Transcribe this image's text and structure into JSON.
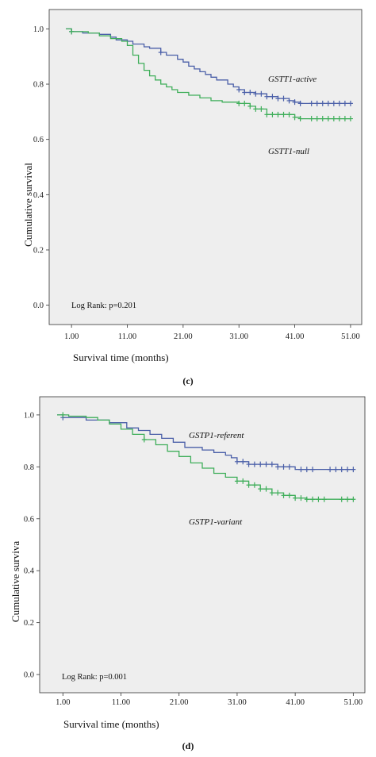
{
  "chart_data": [
    {
      "panel_label": "(c)",
      "type": "line",
      "xlabel": "Survival time (months)",
      "ylabel": "Cumulative survival",
      "xticks": [
        "1.00",
        "11.00",
        "21.00",
        "31.00",
        "41.00",
        "51.00"
      ],
      "yticks": [
        "0.0",
        "0.2",
        "0.4",
        "0.6",
        "0.8",
        "1.0"
      ],
      "xlim": [
        -3,
        53
      ],
      "ylim": [
        -0.07,
        1.07
      ],
      "grid": false,
      "annotation": "Log Rank: p=0.201",
      "series": [
        {
          "name": "GSTT1-active",
          "color": "#4a5fa8",
          "steps": [
            [
              0,
              1.0
            ],
            [
              1,
              0.99
            ],
            [
              3,
              0.985
            ],
            [
              6,
              0.98
            ],
            [
              8,
              0.97
            ],
            [
              9,
              0.96
            ],
            [
              11,
              0.955
            ],
            [
              12,
              0.945
            ],
            [
              14,
              0.935
            ],
            [
              15,
              0.93
            ],
            [
              17,
              0.915
            ],
            [
              18,
              0.905
            ],
            [
              20,
              0.89
            ],
            [
              21,
              0.88
            ],
            [
              22,
              0.865
            ],
            [
              23,
              0.855
            ],
            [
              24,
              0.845
            ],
            [
              25,
              0.835
            ],
            [
              26,
              0.825
            ],
            [
              27,
              0.815
            ],
            [
              29,
              0.8
            ],
            [
              30,
              0.79
            ],
            [
              31,
              0.78
            ],
            [
              32,
              0.77
            ],
            [
              34,
              0.765
            ],
            [
              36,
              0.755
            ],
            [
              38,
              0.748
            ],
            [
              40,
              0.74
            ],
            [
              41,
              0.735
            ],
            [
              42,
              0.73
            ],
            [
              51,
              0.73
            ]
          ],
          "censored": [
            1,
            17,
            31,
            32,
            33,
            34,
            35,
            36,
            37,
            38,
            39,
            40,
            41,
            42,
            44,
            45,
            46,
            47,
            48,
            49,
            50,
            51
          ]
        },
        {
          "name": "GSTT1-null",
          "color": "#3fae5a",
          "steps": [
            [
              0,
              1.0
            ],
            [
              1,
              0.99
            ],
            [
              4,
              0.985
            ],
            [
              6,
              0.975
            ],
            [
              8,
              0.965
            ],
            [
              10,
              0.955
            ],
            [
              11,
              0.94
            ],
            [
              12,
              0.905
            ],
            [
              13,
              0.875
            ],
            [
              14,
              0.85
            ],
            [
              15,
              0.83
            ],
            [
              16,
              0.815
            ],
            [
              17,
              0.8
            ],
            [
              18,
              0.79
            ],
            [
              19,
              0.78
            ],
            [
              20,
              0.77
            ],
            [
              22,
              0.76
            ],
            [
              24,
              0.75
            ],
            [
              26,
              0.74
            ],
            [
              28,
              0.735
            ],
            [
              31,
              0.73
            ],
            [
              33,
              0.72
            ],
            [
              34,
              0.71
            ],
            [
              36,
              0.69
            ],
            [
              41,
              0.68
            ],
            [
              42,
              0.675
            ],
            [
              51,
              0.675
            ]
          ],
          "censored": [
            1,
            31,
            32,
            33,
            34,
            35,
            36,
            37,
            38,
            39,
            40,
            41,
            42,
            44,
            45,
            46,
            47,
            48,
            49,
            50,
            51
          ]
        }
      ]
    },
    {
      "panel_label": "(d)",
      "type": "line",
      "xlabel": "Survival time (months)",
      "ylabel": "Cumulative surviva",
      "xticks": [
        "1.00",
        "11.00",
        "21.00",
        "31.00",
        "41.00",
        "51.00"
      ],
      "yticks": [
        "0.0",
        "0.2",
        "0.4",
        "0.6",
        "0.8",
        "1.0"
      ],
      "xlim": [
        -3,
        53
      ],
      "ylim": [
        -0.07,
        1.07
      ],
      "grid": false,
      "annotation": "Log Rank: p=0.001",
      "series": [
        {
          "name": "GSTP1-referent",
          "color": "#4a5fa8",
          "steps": [
            [
              0,
              1.0
            ],
            [
              1,
              0.99
            ],
            [
              5,
              0.98
            ],
            [
              9,
              0.97
            ],
            [
              12,
              0.95
            ],
            [
              14,
              0.94
            ],
            [
              16,
              0.925
            ],
            [
              18,
              0.91
            ],
            [
              20,
              0.895
            ],
            [
              22,
              0.875
            ],
            [
              25,
              0.865
            ],
            [
              27,
              0.855
            ],
            [
              29,
              0.845
            ],
            [
              30,
              0.835
            ],
            [
              31,
              0.82
            ],
            [
              33,
              0.81
            ],
            [
              38,
              0.8
            ],
            [
              41,
              0.79
            ],
            [
              51,
              0.79
            ]
          ],
          "censored": [
            1,
            31,
            32,
            33,
            34,
            35,
            36,
            37,
            38,
            39,
            40,
            42,
            43,
            44,
            47,
            48,
            49,
            50,
            51
          ]
        },
        {
          "name": "GSTP1-variant",
          "color": "#3fae5a",
          "steps": [
            [
              0,
              1.0
            ],
            [
              2,
              0.995
            ],
            [
              5,
              0.99
            ],
            [
              7,
              0.98
            ],
            [
              9,
              0.965
            ],
            [
              11,
              0.945
            ],
            [
              13,
              0.925
            ],
            [
              15,
              0.905
            ],
            [
              17,
              0.885
            ],
            [
              19,
              0.86
            ],
            [
              21,
              0.84
            ],
            [
              23,
              0.815
            ],
            [
              25,
              0.795
            ],
            [
              27,
              0.775
            ],
            [
              29,
              0.76
            ],
            [
              31,
              0.745
            ],
            [
              33,
              0.73
            ],
            [
              35,
              0.715
            ],
            [
              37,
              0.7
            ],
            [
              39,
              0.69
            ],
            [
              41,
              0.68
            ],
            [
              43,
              0.675
            ],
            [
              51,
              0.675
            ]
          ],
          "censored": [
            1,
            15,
            31,
            32,
            33,
            34,
            35,
            36,
            37,
            38,
            39,
            40,
            41,
            42,
            43,
            44,
            45,
            46,
            49,
            50,
            51
          ]
        }
      ]
    }
  ]
}
